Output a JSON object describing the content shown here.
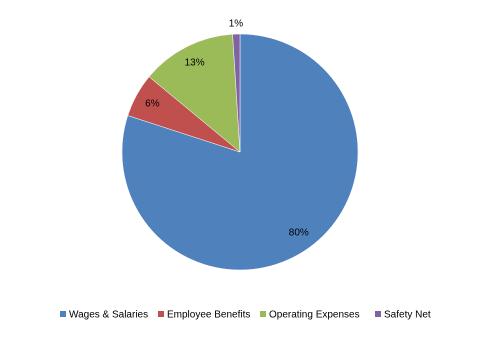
{
  "chart_data": {
    "type": "pie",
    "categories": [
      "Wages & Salaries",
      "Employee Benefits",
      "Operating Expenses",
      "Safety Net"
    ],
    "values": [
      80,
      6,
      13,
      1
    ],
    "value_labels": [
      "80%",
      "6%",
      "13%",
      "1%"
    ],
    "colors": [
      "#4f81bd",
      "#c0504d",
      "#9bbb59",
      "#8064a2"
    ],
    "legend": "bottom"
  }
}
